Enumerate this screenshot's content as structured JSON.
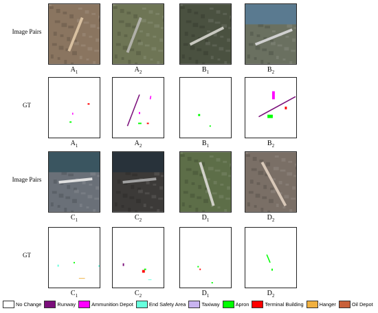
{
  "rows": [
    {
      "label": "Image Pairs",
      "captions": [
        {
          "letter": "A",
          "sub": "1"
        },
        {
          "letter": "A",
          "sub": "2"
        },
        {
          "letter": "B",
          "sub": "1"
        },
        {
          "letter": "B",
          "sub": "2"
        }
      ]
    },
    {
      "label": "GT",
      "captions": [
        {
          "letter": "A",
          "sub": "1"
        },
        {
          "letter": "A",
          "sub": "2"
        },
        {
          "letter": "B",
          "sub": "1"
        },
        {
          "letter": "B",
          "sub": "2"
        }
      ]
    },
    {
      "label": "Image Pairs",
      "captions": [
        {
          "letter": "C",
          "sub": "1"
        },
        {
          "letter": "C",
          "sub": "2"
        },
        {
          "letter": "D",
          "sub": "1"
        },
        {
          "letter": "D",
          "sub": "2"
        }
      ]
    },
    {
      "label": "GT",
      "captions": [
        {
          "letter": "C",
          "sub": "1"
        },
        {
          "letter": "C",
          "sub": "2"
        },
        {
          "letter": "D",
          "sub": "1"
        },
        {
          "letter": "D",
          "sub": "2"
        }
      ]
    }
  ],
  "legend": [
    {
      "name": "No Change",
      "color": "#ffffff"
    },
    {
      "name": "Runway",
      "color": "#7b0f7b"
    },
    {
      "name": "Ammunition Depot",
      "color": "#ff00ff"
    },
    {
      "name": "End Safety Area",
      "color": "#66ffdd"
    },
    {
      "name": "Taxiway",
      "color": "#c8b4f0"
    },
    {
      "name": "Apron",
      "color": "#00ff00"
    },
    {
      "name": "Terminal Building",
      "color": "#ff0000"
    },
    {
      "name": "Hanger",
      "color": "#f0b040"
    },
    {
      "name": "Oil Depot",
      "color": "#c8603a"
    }
  ]
}
